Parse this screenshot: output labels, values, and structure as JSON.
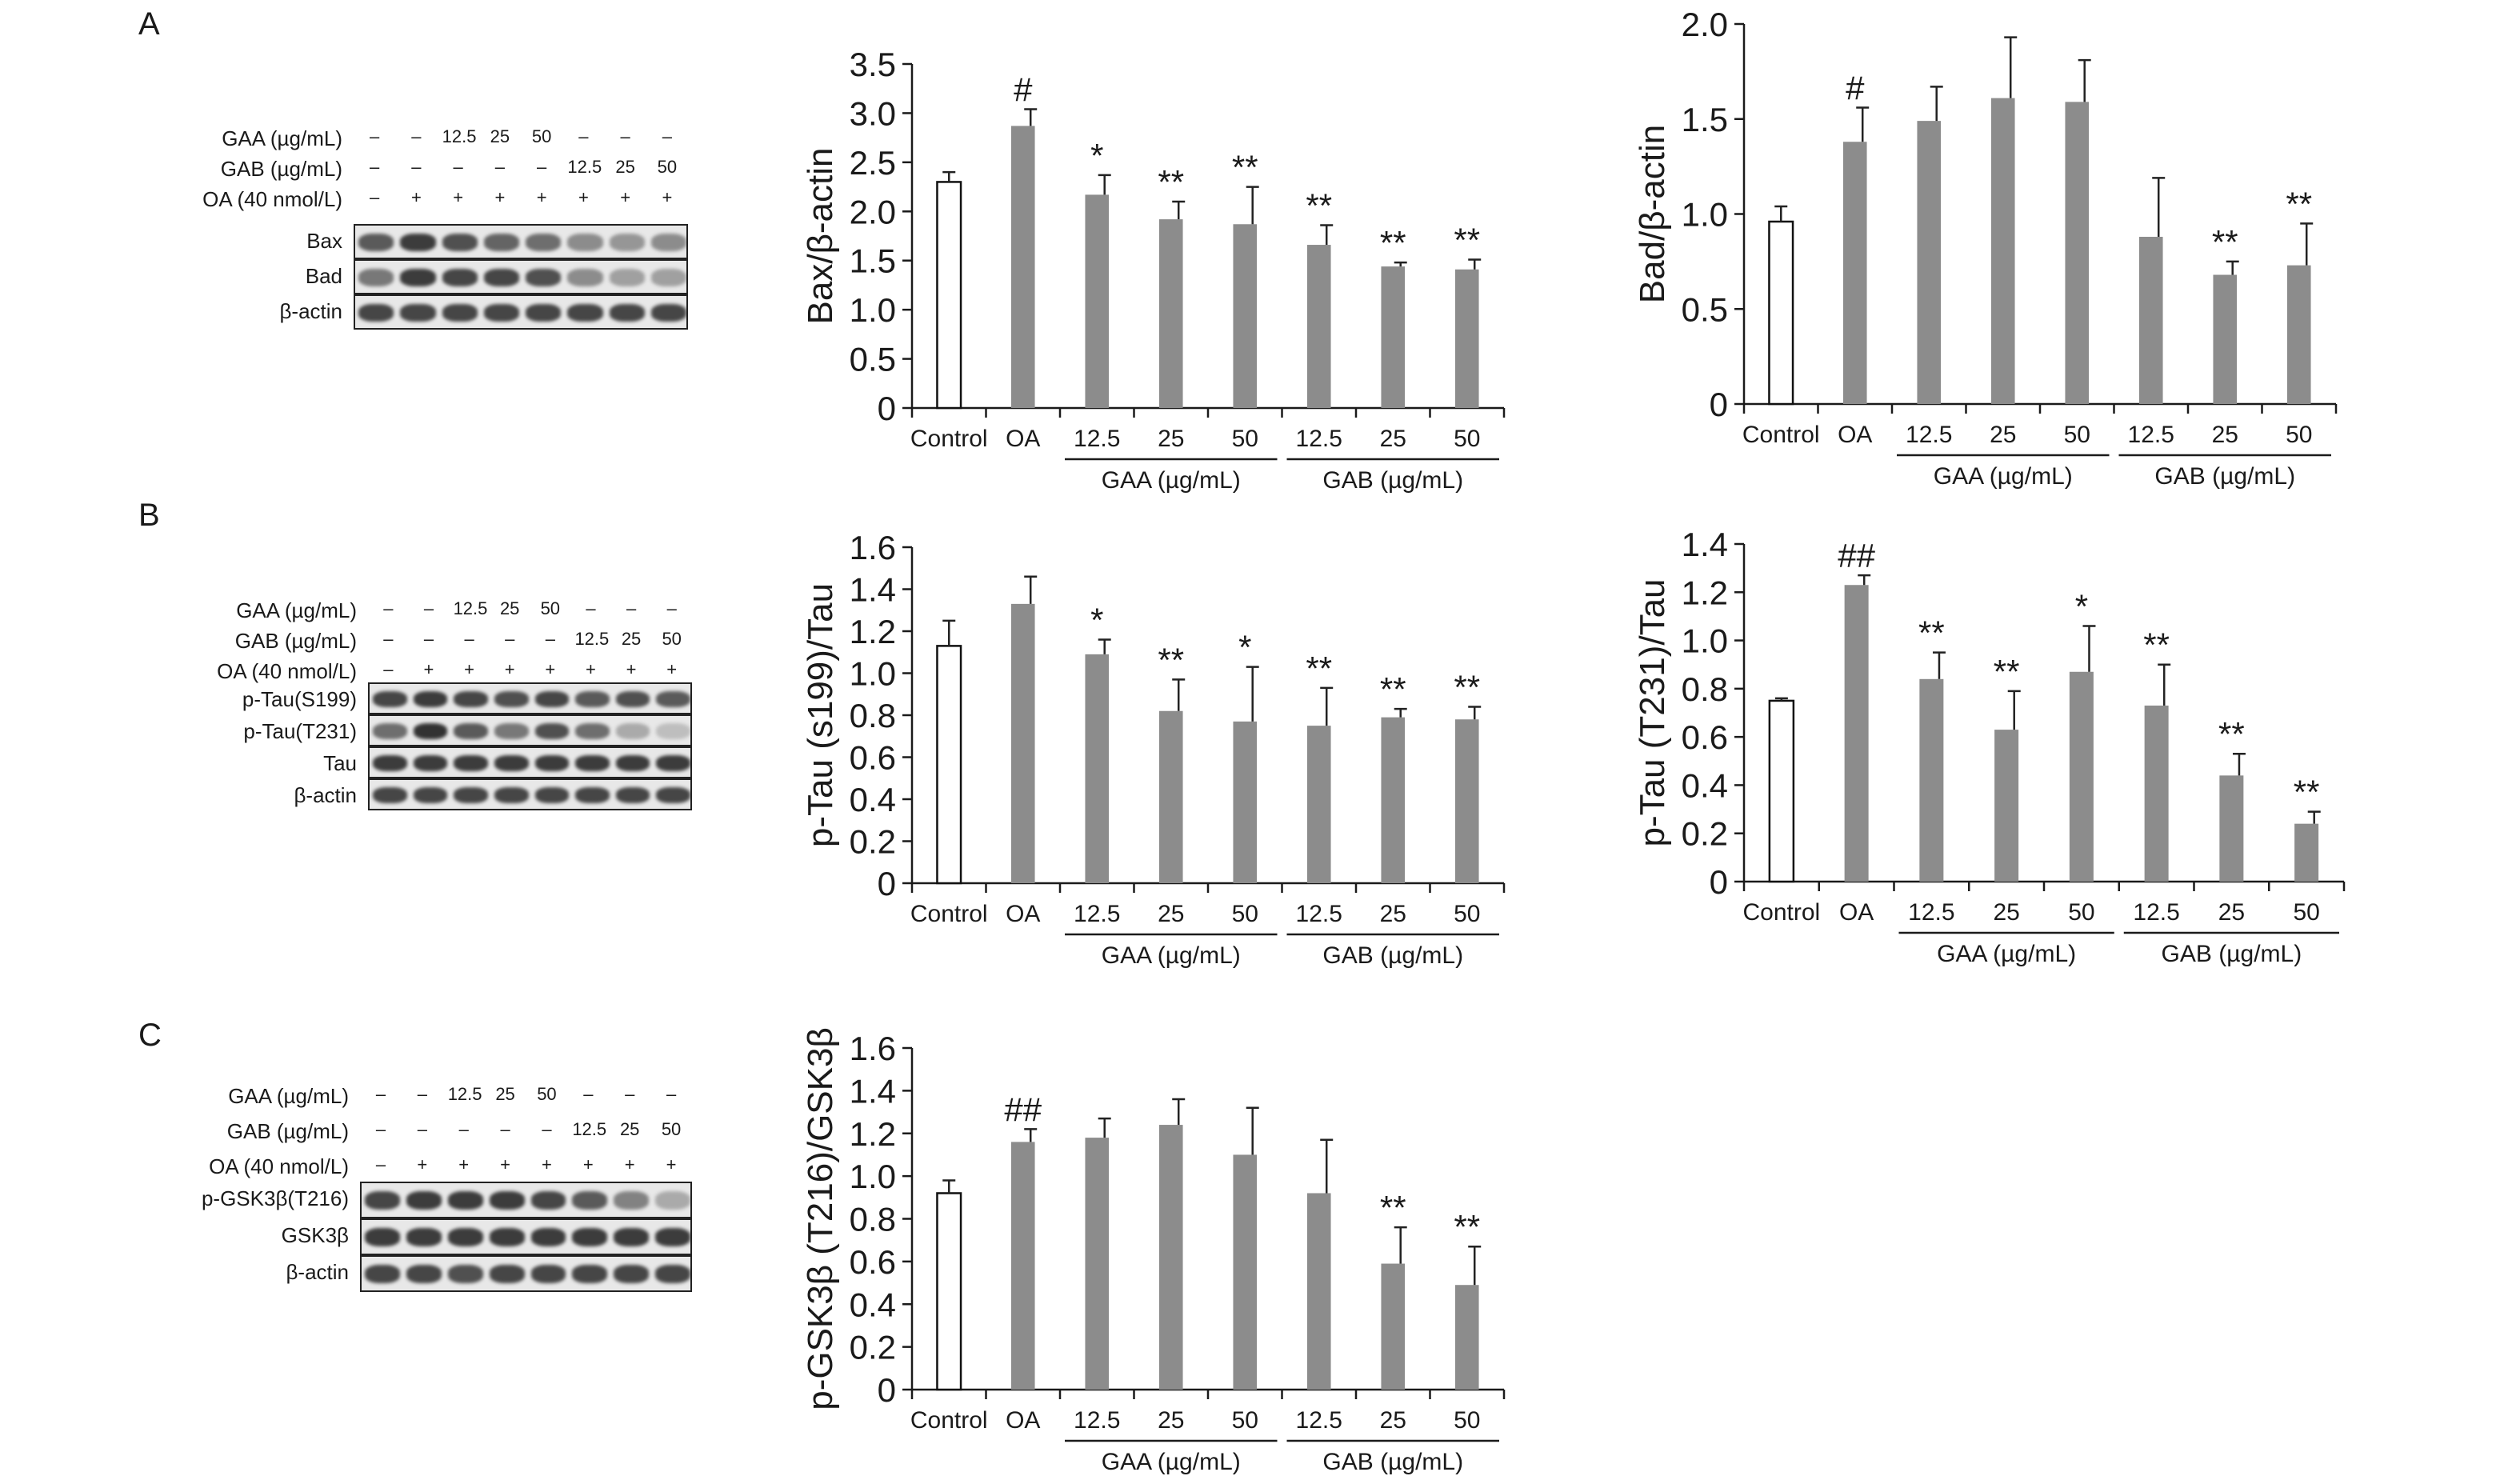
{
  "panels": {
    "A": "A",
    "B": "B",
    "C": "C"
  },
  "blots": [
    {
      "id": "A",
      "treatments": [
        {
          "label": "GAA (µg/mL)",
          "marks": [
            "–",
            "–",
            "12.5",
            "25",
            "50",
            "–",
            "–",
            "–"
          ]
        },
        {
          "label": "GAB (µg/mL)",
          "marks": [
            "–",
            "–",
            "–",
            "–",
            "–",
            "12.5",
            "25",
            "50"
          ]
        },
        {
          "label": "OA (40 nmol/L)",
          "marks": [
            "–",
            "+",
            "+",
            "+",
            "+",
            "+",
            "+",
            "+"
          ]
        }
      ],
      "bands": [
        {
          "label": "Bax",
          "intensity": [
            0.7,
            0.85,
            0.75,
            0.65,
            0.6,
            0.45,
            0.4,
            0.45
          ]
        },
        {
          "label": "Bad",
          "intensity": [
            0.55,
            0.85,
            0.8,
            0.8,
            0.75,
            0.45,
            0.35,
            0.35
          ]
        },
        {
          "label": "β-actin",
          "intensity": [
            0.8,
            0.8,
            0.8,
            0.8,
            0.8,
            0.8,
            0.8,
            0.8
          ]
        }
      ]
    },
    {
      "id": "B",
      "treatments": [
        {
          "label": "GAA (µg/mL)",
          "marks": [
            "–",
            "–",
            "12.5",
            "25",
            "50",
            "–",
            "–",
            "–"
          ]
        },
        {
          "label": "GAB (µg/mL)",
          "marks": [
            "–",
            "–",
            "–",
            "–",
            "–",
            "12.5",
            "25",
            "50"
          ]
        },
        {
          "label": "OA (40 nmol/L)",
          "marks": [
            "–",
            "+",
            "+",
            "+",
            "+",
            "+",
            "+",
            "+"
          ]
        }
      ],
      "bands": [
        {
          "label": "p-Tau(S199)",
          "intensity": [
            0.8,
            0.85,
            0.8,
            0.75,
            0.8,
            0.7,
            0.75,
            0.7
          ]
        },
        {
          "label": "p-Tau(T231)",
          "intensity": [
            0.6,
            0.9,
            0.7,
            0.55,
            0.75,
            0.6,
            0.3,
            0.2
          ]
        },
        {
          "label": "Tau",
          "intensity": [
            0.85,
            0.85,
            0.85,
            0.85,
            0.85,
            0.85,
            0.85,
            0.85
          ]
        },
        {
          "label": "β-actin",
          "intensity": [
            0.8,
            0.8,
            0.8,
            0.8,
            0.8,
            0.8,
            0.8,
            0.8
          ]
        }
      ]
    },
    {
      "id": "C",
      "treatments": [
        {
          "label": "GAA (µg/mL)",
          "marks": [
            "–",
            "–",
            "12.5",
            "25",
            "50",
            "–",
            "–",
            "–"
          ]
        },
        {
          "label": "GAB (µg/mL)",
          "marks": [
            "–",
            "–",
            "–",
            "–",
            "–",
            "12.5",
            "25",
            "50"
          ]
        },
        {
          "label": "OA (40 nmol/L)",
          "marks": [
            "–",
            "+",
            "+",
            "+",
            "+",
            "+",
            "+",
            "+"
          ]
        }
      ],
      "bands": [
        {
          "label": "p-GSK3β(T216)",
          "intensity": [
            0.8,
            0.85,
            0.85,
            0.85,
            0.8,
            0.7,
            0.5,
            0.3
          ]
        },
        {
          "label": "GSK3β",
          "intensity": [
            0.85,
            0.85,
            0.85,
            0.85,
            0.85,
            0.85,
            0.85,
            0.85
          ]
        },
        {
          "label": "β-actin",
          "intensity": [
            0.8,
            0.8,
            0.75,
            0.8,
            0.8,
            0.8,
            0.8,
            0.8
          ]
        }
      ]
    }
  ],
  "chart_data": [
    {
      "id": "bax",
      "type": "bar",
      "ylabel": "Bax/β-actin",
      "ylim": [
        0,
        3.5
      ],
      "yticks": [
        "0",
        "0.5",
        "1.0",
        "1.5",
        "2.0",
        "2.5",
        "3.0",
        "3.5"
      ],
      "ytick_values": [
        0,
        0.5,
        1.0,
        1.5,
        2.0,
        2.5,
        3.0,
        3.5
      ],
      "categories": [
        "Control",
        "OA",
        "12.5",
        "25",
        "50",
        "12.5",
        "25",
        "50"
      ],
      "values": [
        2.3,
        2.87,
        2.17,
        1.92,
        1.87,
        1.66,
        1.44,
        1.41
      ],
      "errors": [
        0.1,
        0.17,
        0.2,
        0.18,
        0.38,
        0.2,
        0.04,
        0.1
      ],
      "annotations": [
        "",
        "#",
        "*",
        "**",
        "**",
        "**",
        "**",
        "**"
      ],
      "groups": [
        {
          "label": "GAA (µg/mL)",
          "from": 2,
          "to": 4
        },
        {
          "label": "GAB (µg/mL)",
          "from": 5,
          "to": 7
        }
      ]
    },
    {
      "id": "bad",
      "type": "bar",
      "ylabel": "Bad/β-actin",
      "ylim": [
        0,
        2.0
      ],
      "yticks": [
        "0",
        "0.5",
        "1.0",
        "1.5",
        "2.0"
      ],
      "ytick_values": [
        0,
        0.5,
        1.0,
        1.5,
        2.0
      ],
      "categories": [
        "Control",
        "OA",
        "12.5",
        "25",
        "50",
        "12.5",
        "25",
        "50"
      ],
      "values": [
        0.96,
        1.38,
        1.49,
        1.61,
        1.59,
        0.88,
        0.68,
        0.73
      ],
      "errors": [
        0.08,
        0.18,
        0.18,
        0.32,
        0.22,
        0.31,
        0.07,
        0.22
      ],
      "annotations": [
        "",
        "#",
        "",
        "",
        "",
        "",
        "**",
        "**"
      ],
      "groups": [
        {
          "label": "GAA (µg/mL)",
          "from": 2,
          "to": 4
        },
        {
          "label": "GAB (µg/mL)",
          "from": 5,
          "to": 7
        }
      ]
    },
    {
      "id": "ptau199",
      "type": "bar",
      "ylabel": "p-Tau (s199)/Tau",
      "ylim": [
        0,
        1.6
      ],
      "yticks": [
        "0",
        "0.2",
        "0.4",
        "0.6",
        "0.8",
        "1.0",
        "1.2",
        "1.4",
        "1.6"
      ],
      "ytick_values": [
        0,
        0.2,
        0.4,
        0.6,
        0.8,
        1.0,
        1.2,
        1.4,
        1.6
      ],
      "categories": [
        "Control",
        "OA",
        "12.5",
        "25",
        "50",
        "12.5",
        "25",
        "50"
      ],
      "values": [
        1.13,
        1.33,
        1.09,
        0.82,
        0.77,
        0.75,
        0.79,
        0.78
      ],
      "errors": [
        0.12,
        0.13,
        0.07,
        0.15,
        0.26,
        0.18,
        0.04,
        0.06
      ],
      "annotations": [
        "",
        "",
        "*",
        "**",
        "*",
        "**",
        "**",
        "**"
      ],
      "groups": [
        {
          "label": "GAA (µg/mL)",
          "from": 2,
          "to": 4
        },
        {
          "label": "GAB (µg/mL)",
          "from": 5,
          "to": 7
        }
      ]
    },
    {
      "id": "ptau231",
      "type": "bar",
      "ylabel": "p-Tau (T231)/Tau",
      "ylim": [
        0,
        1.4
      ],
      "yticks": [
        "0",
        "0.2",
        "0.4",
        "0.6",
        "0.8",
        "1.0",
        "1.2",
        "1.4"
      ],
      "ytick_values": [
        0,
        0.2,
        0.4,
        0.6,
        0.8,
        1.0,
        1.2,
        1.4
      ],
      "categories": [
        "Control",
        "OA",
        "12.5",
        "25",
        "50",
        "12.5",
        "25",
        "50"
      ],
      "values": [
        0.75,
        1.23,
        0.84,
        0.63,
        0.87,
        0.73,
        0.44,
        0.24
      ],
      "errors": [
        0.01,
        0.04,
        0.11,
        0.16,
        0.19,
        0.17,
        0.09,
        0.05
      ],
      "annotations": [
        "",
        "##",
        "**",
        "**",
        "*",
        "**",
        "**",
        "**"
      ],
      "groups": [
        {
          "label": "GAA (µg/mL)",
          "from": 2,
          "to": 4
        },
        {
          "label": "GAB (µg/mL)",
          "from": 5,
          "to": 7
        }
      ]
    },
    {
      "id": "pgsk",
      "type": "bar",
      "ylabel": "p-GSK3β (T216)/GSK3β",
      "ylim": [
        0,
        1.6
      ],
      "yticks": [
        "0",
        "0.2",
        "0.4",
        "0.6",
        "0.8",
        "1.0",
        "1.2",
        "1.4",
        "1.6"
      ],
      "ytick_values": [
        0,
        0.2,
        0.4,
        0.6,
        0.8,
        1.0,
        1.2,
        1.4,
        1.6
      ],
      "categories": [
        "Control",
        "OA",
        "12.5",
        "25",
        "50",
        "12.5",
        "25",
        "50"
      ],
      "values": [
        0.92,
        1.16,
        1.18,
        1.24,
        1.1,
        0.92,
        0.59,
        0.49
      ],
      "errors": [
        0.06,
        0.06,
        0.09,
        0.12,
        0.22,
        0.25,
        0.17,
        0.18
      ],
      "annotations": [
        "",
        "##",
        "",
        "",
        "",
        "",
        "**",
        "**"
      ],
      "groups": [
        {
          "label": "GAA (µg/mL)",
          "from": 2,
          "to": 4
        },
        {
          "label": "GAB (µg/mL)",
          "from": 5,
          "to": 7
        }
      ]
    }
  ],
  "colors": {
    "control_fill": "#ffffff",
    "treated_fill": "#8c8c8c",
    "axis": "#1a1a1a",
    "bar_stroke": "#111111"
  }
}
